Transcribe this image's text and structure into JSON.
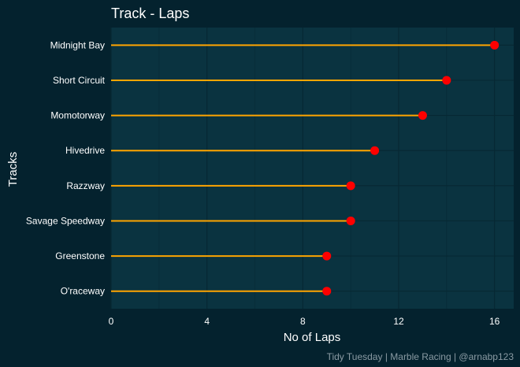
{
  "chart_data": {
    "type": "lollipop",
    "title": "Track - Laps",
    "xlabel": "No of Laps",
    "ylabel": "Tracks",
    "caption": "Tidy Tuesday | Marble Racing | @arnabp123",
    "categories": [
      "Midnight Bay",
      "Short Circuit",
      "Momotorway",
      "Hivedrive",
      "Razzway",
      "Savage Speedway",
      "Greenstone",
      "O'raceway"
    ],
    "values": [
      16,
      14,
      13,
      11,
      10,
      10,
      9,
      9
    ],
    "xlim": [
      0,
      16.8
    ],
    "xticks": [
      0,
      4,
      8,
      12,
      16
    ],
    "grid": true,
    "legend": "none",
    "colors": {
      "background": "#04222e",
      "panel": "#0a3340",
      "grid_major": "#072833",
      "grid_minor": "#082d39",
      "stem": "#ffa500",
      "point": "#ff0000"
    }
  }
}
